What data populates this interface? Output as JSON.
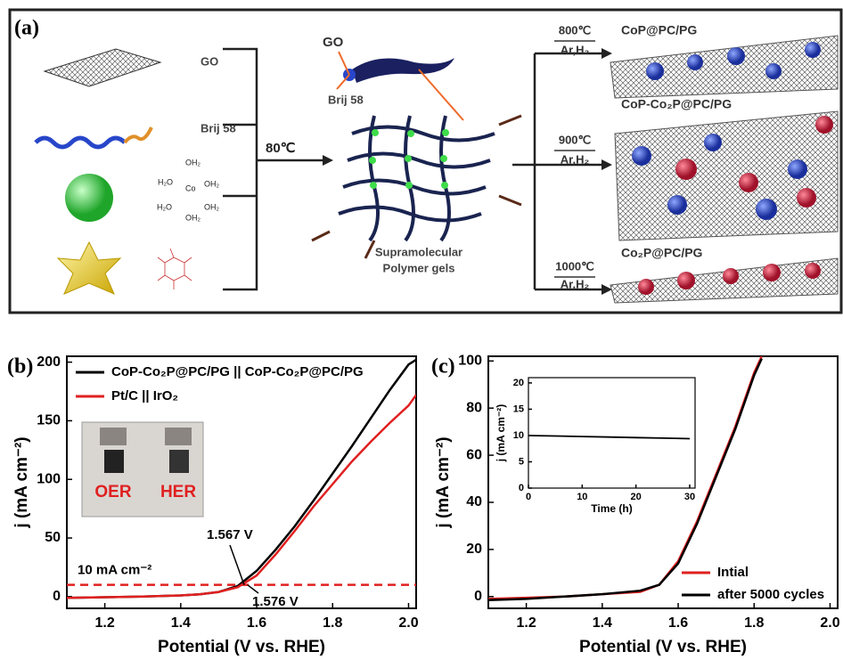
{
  "panel_a": {
    "label": "(a)",
    "precursors": [
      "GO",
      "Brij 58"
    ],
    "cobalt_complex": [
      "OH₂",
      "H₂O",
      "Co",
      "OH₂",
      "H₂O",
      "OH₂",
      "OH₂"
    ],
    "reaction_temperature": "80℃",
    "gel_labels": [
      "GO",
      "Brij 58"
    ],
    "gel_name": [
      "Supramolecular",
      "Polymer gels"
    ],
    "products": [
      {
        "condition": "800℃",
        "gas": "Ar,H₂",
        "name": "CoP@PC/PG"
      },
      {
        "condition": "900℃",
        "gas": "Ar,H₂",
        "name": "CoP-Co₂P@PC/PG"
      },
      {
        "condition": "1000℃",
        "gas": "Ar,H₂",
        "name": "Co₂P@PC/PG"
      }
    ]
  },
  "chart_data": [
    {
      "type": "line",
      "label": "(b)",
      "xlabel": "Potential (V vs. RHE)",
      "ylabel": "j (mA cm⁻²)",
      "x": [
        1.1,
        1.2,
        1.3,
        1.4,
        1.45,
        1.5,
        1.55,
        1.6,
        1.65,
        1.7,
        1.75,
        1.8,
        1.85,
        1.9,
        1.95,
        2.0,
        2.02
      ],
      "series": [
        {
          "name": "CoP-Co₂P@PC/PG || CoP-Co₂P@PC/PG",
          "color": "#000000",
          "values": [
            -1,
            -0.5,
            0,
            1,
            2,
            4,
            9,
            22,
            40,
            60,
            82,
            105,
            128,
            152,
            176,
            198,
            202
          ]
        },
        {
          "name": "Pt/C || IrO₂",
          "color": "#e02020",
          "values": [
            -1,
            -0.5,
            0,
            1,
            2,
            4,
            8,
            18,
            36,
            56,
            77,
            96,
            115,
            132,
            148,
            163,
            172
          ]
        }
      ],
      "xlim": [
        1.1,
        2.02
      ],
      "ylim": [
        -10,
        205
      ],
      "xticks": [
        1.2,
        1.4,
        1.6,
        1.8,
        {
          "value": 2,
          "label": "2.0"
        }
      ],
      "yticks": [
        0,
        50,
        100,
        150,
        200
      ],
      "legend": "upper left",
      "reference_line": {
        "value": 10,
        "label": "10 mA cm⁻²",
        "color": "#e02020"
      },
      "annotations": [
        "1.567 V",
        "1.576 V"
      ],
      "inset_photo_labels": [
        "OER",
        "HER"
      ]
    },
    {
      "type": "line",
      "label": "(c)",
      "xlabel": "Potential (V vs. RHE)",
      "ylabel": "j (mA cm⁻²)",
      "x": [
        1.1,
        1.2,
        1.3,
        1.4,
        1.5,
        1.55,
        1.6,
        1.65,
        1.7,
        1.75,
        1.8,
        1.82
      ],
      "series": [
        {
          "name": "Intial",
          "color": "#e02020",
          "values": [
            -1,
            -0.5,
            0,
            1,
            2,
            5,
            15,
            32,
            52,
            72,
            95,
            102
          ]
        },
        {
          "name": "after 5000 cycles",
          "color": "#000000",
          "values": [
            -1.5,
            -1,
            0,
            1,
            2.5,
            5,
            14,
            31,
            51,
            71,
            94,
            101
          ]
        }
      ],
      "xlim": [
        1.1,
        2.02
      ],
      "ylim": [
        -5,
        102
      ],
      "xticks": [
        1.2,
        1.4,
        1.6,
        1.8,
        {
          "value": 2,
          "label": "2.0"
        }
      ],
      "yticks": [
        0,
        20,
        40,
        60,
        80,
        100
      ],
      "legend": "lower right"
    },
    {
      "type": "line",
      "xlabel": "Time (h)",
      "ylabel": "j (mA cm⁻²)",
      "x": [
        0,
        5,
        10,
        15,
        20,
        25,
        30
      ],
      "series": [
        {
          "color": "#000000",
          "values": [
            10,
            9.9,
            9.8,
            9.7,
            9.6,
            9.5,
            9.4
          ]
        }
      ],
      "xlim": [
        0,
        31
      ],
      "ylim": [
        0,
        21
      ],
      "xticks": [
        0,
        10,
        20,
        30
      ],
      "yticks": [
        0,
        5,
        10,
        15,
        20
      ]
    }
  ]
}
